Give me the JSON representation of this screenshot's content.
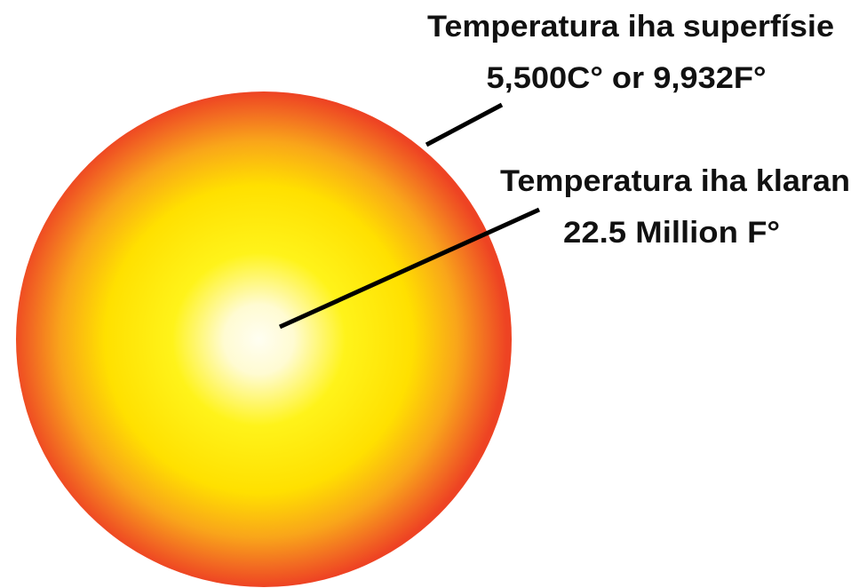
{
  "labels": [
    {
      "title": "Temperatura iha superfísie",
      "value": "5,500C° or 9,932F°"
    },
    {
      "title": "Temperatura iha klaran",
      "value": "22.5 Million F°"
    }
  ]
}
